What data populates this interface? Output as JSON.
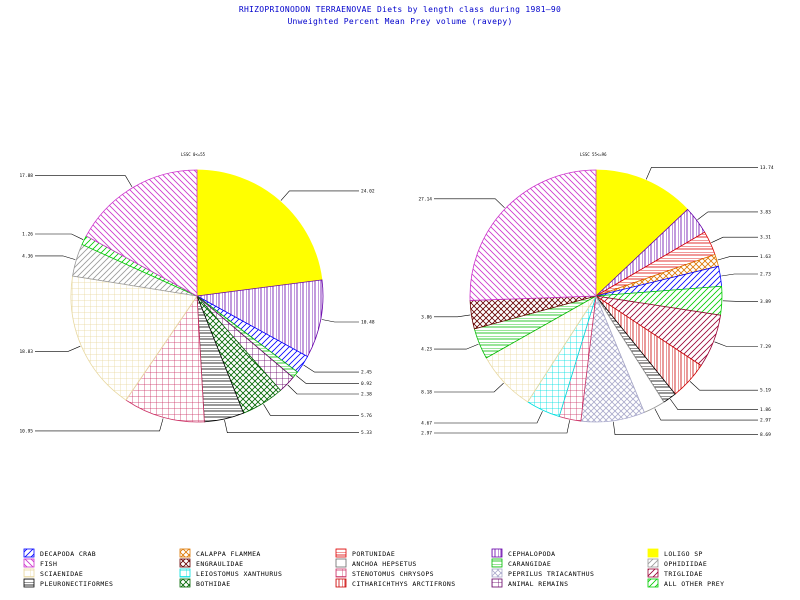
{
  "title": "RHIZOPRIONODON TERRAENOVAE Diets by length class during 1981—90",
  "subtitle": "Unweighted Percent Mean Prey volume (ravepy)",
  "chart_data": [
    {
      "type": "pie",
      "label": "LSSC 0<=55",
      "slices": [
        {
          "category": "LOLIGO SP",
          "value": 24.02,
          "label": "24.02"
        },
        {
          "category": "CEPHALOPODA",
          "value": 10.48,
          "label": "10.48"
        },
        {
          "category": "DECAPODA CRAB",
          "value": 2.45,
          "label": "2.45"
        },
        {
          "category": "CARANGIDAE",
          "value": 0.92,
          "label": "0.92"
        },
        {
          "category": "ANIMAL REMAINS",
          "value": 2.38,
          "label": "2.38"
        },
        {
          "category": "BOTHIDAE",
          "value": 5.76,
          "label": "5.76"
        },
        {
          "category": "PLEURONECTIFORMES",
          "value": 5.33,
          "label": "5.33"
        },
        {
          "category": "STENOTOMUS CHRYSOPS",
          "value": 10.95,
          "label": "10.95"
        },
        {
          "category": "SCIAENIDAE",
          "value": 18.83,
          "label": "18.83"
        },
        {
          "category": "OPHIDIIDAE",
          "value": 4.36,
          "label": "4.36"
        },
        {
          "category": "ALL OTHER PREY",
          "value": 1.26,
          "label": "1.26"
        },
        {
          "category": "FISH",
          "value": 17.88,
          "label": "17.88"
        }
      ]
    },
    {
      "type": "pie",
      "label": "LSSC 55<=96",
      "slices": [
        {
          "category": "LOLIGO SP",
          "value": 13.74,
          "label": "13.74"
        },
        {
          "category": "CEPHALOPODA",
          "value": 3.83,
          "label": "3.83"
        },
        {
          "category": "PORTUNIDAE",
          "value": 3.31,
          "label": "3.31"
        },
        {
          "category": "CALAPPA FLAMMEA",
          "value": 1.63,
          "label": "1.63"
        },
        {
          "category": "DECAPODA CRAB",
          "value": 2.73,
          "label": "2.73"
        },
        {
          "category": "ALL OTHER PREY",
          "value": 3.89,
          "label": "3.89"
        },
        {
          "category": "TRIGLIDAE",
          "value": 7.29,
          "label": "7.29"
        },
        {
          "category": "CITHARICHTHYS ARCTIFRONS",
          "value": 5.19,
          "label": "5.19"
        },
        {
          "category": "PLEURONECTIFORMES",
          "value": 1.86,
          "label": "1.86"
        },
        {
          "category": "ANCHOA HEPSETUS",
          "value": 2.97,
          "label": "2.97"
        },
        {
          "category": "PEPRILUS TRIACANTHUS",
          "value": 8.69,
          "label": "8.69"
        },
        {
          "category": "STENOTOMUS CHRYSOPS",
          "value": 2.97,
          "label": "2.97"
        },
        {
          "category": "LEIOSTOMUS XANTHURUS",
          "value": 4.67,
          "label": "4.67"
        },
        {
          "category": "SCIAENIDAE",
          "value": 8.18,
          "label": "8.18"
        },
        {
          "category": "CARANGIDAE",
          "value": 4.23,
          "label": "4.23"
        },
        {
          "category": "ENGRAULIDAE",
          "value": 3.86,
          "label": "3.86"
        },
        {
          "category": "FISH",
          "value": 27.14,
          "label": "27.14"
        }
      ]
    }
  ],
  "legend": [
    {
      "name": "DECAPODA CRAB",
      "color": "#0000ff",
      "pattern": "diag-right",
      "col": 0,
      "row": 0
    },
    {
      "name": "FISH",
      "color": "#cc33cc",
      "pattern": "diag-left",
      "col": 0,
      "row": 1
    },
    {
      "name": "SCIAENIDAE",
      "color": "#e8d8a0",
      "pattern": "grid",
      "col": 0,
      "row": 2
    },
    {
      "name": "PLEURONECTIFORMES",
      "color": "#000000",
      "pattern": "horizontal",
      "col": 0,
      "row": 3
    },
    {
      "name": "CALAPPA FLAMMEA",
      "color": "#dd7700",
      "pattern": "cross-diag",
      "col": 1,
      "row": 0
    },
    {
      "name": "ENGRAULIDAE",
      "color": "#660000",
      "pattern": "cross-diag",
      "col": 1,
      "row": 1
    },
    {
      "name": "LEIOSTOMUS XANTHURUS",
      "color": "#00e0e0",
      "pattern": "grid",
      "col": 1,
      "row": 2
    },
    {
      "name": "BOTHIDAE",
      "color": "#006600",
      "pattern": "cross-diag",
      "col": 1,
      "row": 3
    },
    {
      "name": "PORTUNIDAE",
      "color": "#dd0000",
      "pattern": "horizontal",
      "col": 2,
      "row": 0
    },
    {
      "name": "ANCHOA HEPSETUS",
      "color": "#ffffff",
      "pattern": "none",
      "col": 2,
      "row": 1
    },
    {
      "name": "STENOTOMUS CHRYSOPS",
      "color": "#cc3366",
      "pattern": "grid",
      "col": 2,
      "row": 2
    },
    {
      "name": "CITHARICHTHYS ARCTIFRONS",
      "color": "#cc0000",
      "pattern": "vertical",
      "col": 2,
      "row": 3
    },
    {
      "name": "CEPHALOPODA",
      "color": "#6600aa",
      "pattern": "vertical",
      "col": 3,
      "row": 0
    },
    {
      "name": "CARANGIDAE",
      "color": "#00bb00",
      "pattern": "horizontal",
      "col": 3,
      "row": 1
    },
    {
      "name": "PEPRILUS TRIACANTHUS",
      "color": "#aaaacc",
      "pattern": "cross-diag",
      "col": 3,
      "row": 2
    },
    {
      "name": "ANIMAL REMAINS",
      "color": "#660066",
      "pattern": "grid",
      "col": 3,
      "row": 3
    },
    {
      "name": "LOLIGO SP",
      "color": "#ffff00",
      "pattern": "solid",
      "col": 4,
      "row": 0
    },
    {
      "name": "OPHIDIIDAE",
      "color": "#999999",
      "pattern": "diag-right",
      "col": 4,
      "row": 1
    },
    {
      "name": "TRIGLIDAE",
      "color": "#990033",
      "pattern": "diag-right",
      "col": 4,
      "row": 2
    },
    {
      "name": "ALL OTHER PREY",
      "color": "#00cc00",
      "pattern": "diag-right",
      "col": 4,
      "row": 3
    }
  ]
}
